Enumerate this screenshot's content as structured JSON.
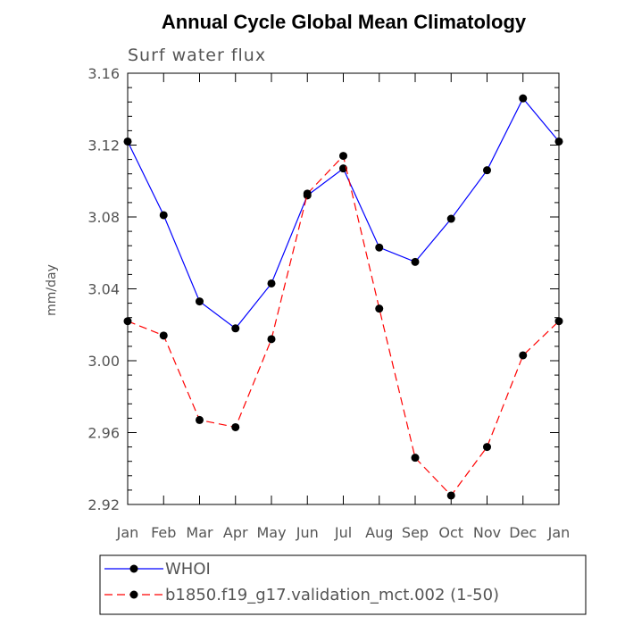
{
  "chart_data": {
    "type": "line",
    "title": "Annual Cycle Global Mean Climatology",
    "subtitle": "Surf water flux",
    "xlabel": "",
    "ylabel": "mm/day",
    "categories": [
      "Jan",
      "Feb",
      "Mar",
      "Apr",
      "May",
      "Jun",
      "Jul",
      "Aug",
      "Sep",
      "Oct",
      "Nov",
      "Dec",
      "Jan"
    ],
    "ylim": [
      2.92,
      3.16
    ],
    "yticks": [
      "2.92",
      "2.96",
      "3.00",
      "3.04",
      "3.08",
      "3.12",
      "3.16"
    ],
    "series": [
      {
        "name": "WHOI",
        "color": "#0000ff",
        "dash": "solid",
        "values": [
          3.122,
          3.081,
          3.033,
          3.018,
          3.043,
          3.092,
          3.107,
          3.063,
          3.055,
          3.079,
          3.106,
          3.146,
          3.122
        ]
      },
      {
        "name": "b1850.f19_g17.validation_mct.002 (1-50)",
        "color": "#ff0000",
        "dash": "dashed",
        "values": [
          3.022,
          3.014,
          2.967,
          2.963,
          3.012,
          3.093,
          3.114,
          3.029,
          2.946,
          2.925,
          2.952,
          3.003,
          3.022
        ]
      }
    ],
    "grid": false,
    "legend_position": "bottom"
  }
}
